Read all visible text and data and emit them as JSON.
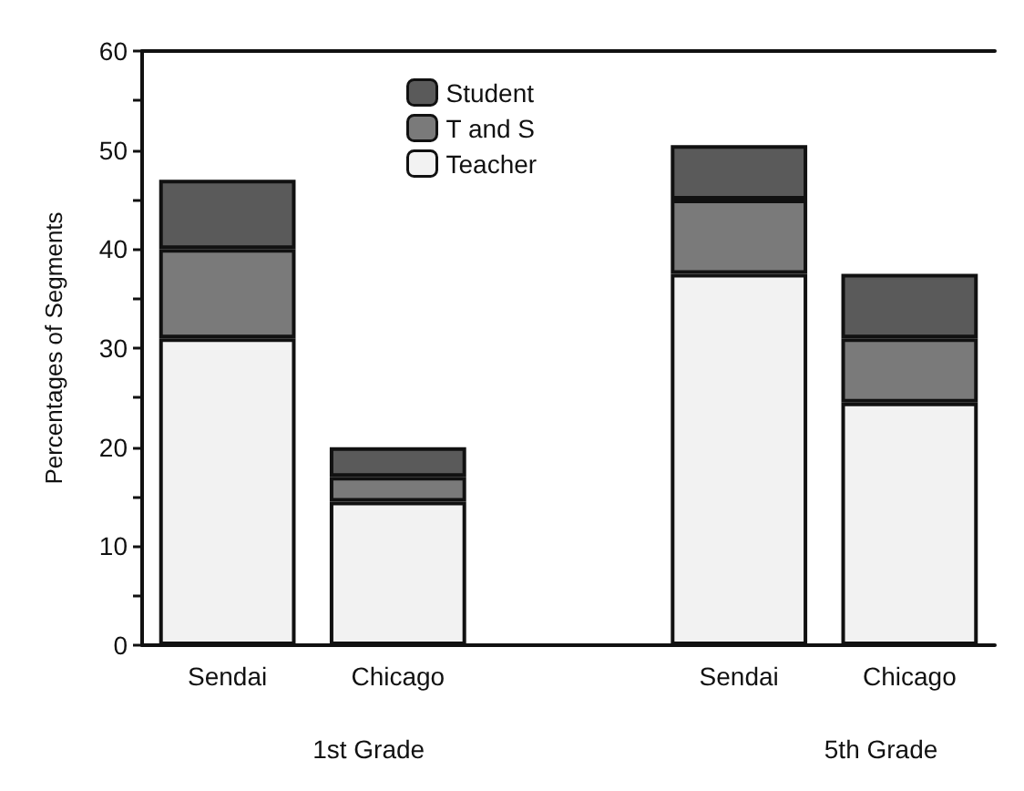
{
  "chart_data": {
    "type": "bar",
    "stacked": true,
    "ylabel": "Percentages of Segments",
    "categories": [
      "Sendai",
      "Chicago",
      null,
      "Sendai",
      "Chicago"
    ],
    "series": [
      {
        "name": "Teacher",
        "color": "#f2f2f2",
        "values": [
          31,
          14.5,
          null,
          37.5,
          24.5
        ]
      },
      {
        "name": "T and S",
        "color": "#7a7a7a",
        "values": [
          9,
          2.5,
          null,
          7.5,
          6.5
        ]
      },
      {
        "name": "Student",
        "color": "#5a5a5a",
        "values": [
          7,
          3,
          null,
          5.5,
          6.5
        ]
      }
    ],
    "ylim": [
      0,
      60
    ],
    "yticks": [
      0,
      {
        "value": 5,
        "label": null
      },
      10,
      {
        "value": 15,
        "label": null
      },
      20,
      {
        "value": 25,
        "label": null
      },
      30,
      {
        "value": 35,
        "label": null
      },
      40,
      {
        "value": 45,
        "label": null
      },
      50,
      {
        "value": 55,
        "label": null
      },
      60
    ],
    "annotations": [
      "1st Grade",
      "5th Grade"
    ],
    "legend": "top",
    "grid": false
  }
}
